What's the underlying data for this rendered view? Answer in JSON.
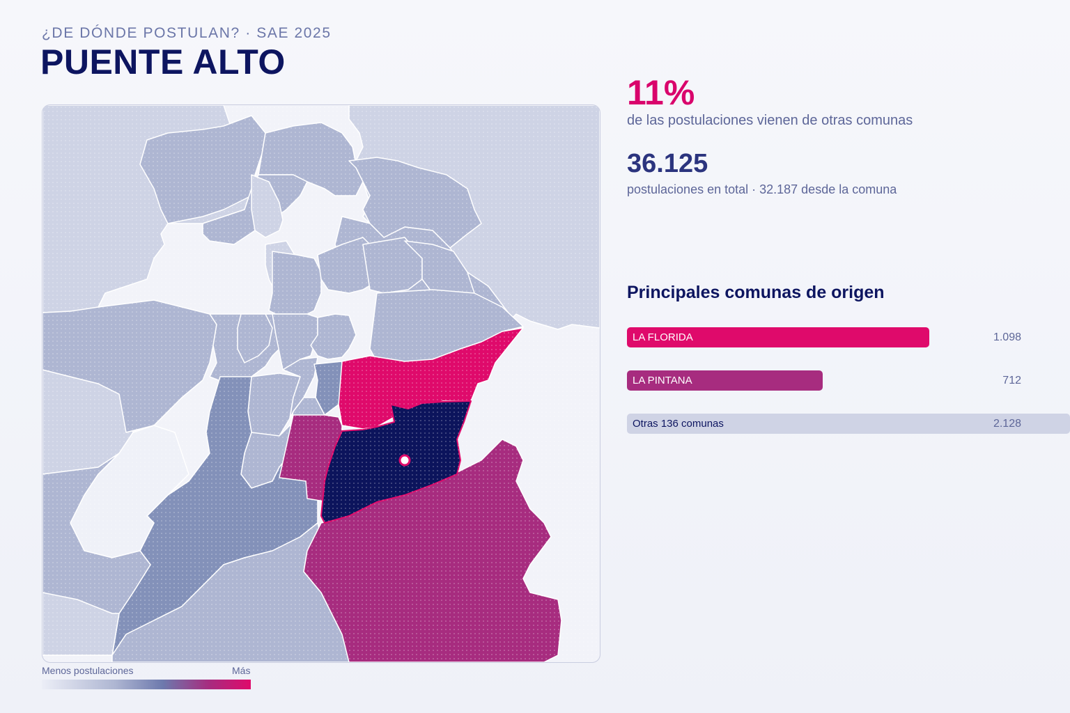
{
  "header": {
    "kicker": "¿DE DÓNDE POSTULAN? · SAE 2025",
    "title": "PUENTE ALTO"
  },
  "stats": {
    "outside_pct": "11%",
    "outside_label": "de las postulaciones vienen de otras comunas",
    "total": "36.125",
    "total_label": "postulaciones en total · 32.187 desde la comuna"
  },
  "origins": {
    "title": "Principales comunas de origen",
    "items": [
      {
        "label": "LA FLORIDA",
        "value": "1.098",
        "share": 0.682,
        "color": "#df0a6b",
        "text_color": "#ffffff"
      },
      {
        "label": "LA PINTANA",
        "value": "712",
        "share": 0.442,
        "color": "#a72c7f",
        "text_color": "#ffffff"
      },
      {
        "label": "Otras 136 comunas",
        "value": "2.128",
        "share": 1.0,
        "color": "#cfd3e5",
        "text_color": "#0d1560"
      }
    ]
  },
  "legend": {
    "low_label": "Menos postulaciones",
    "high_label": "Más"
  },
  "map": {
    "colors": {
      "selected": "#0c145c",
      "highest": "#df0a6b",
      "high": "#a72c7f",
      "mid": "#8391b9",
      "low": "#aeb6d2",
      "lowest": "#ced3e5",
      "none": "#eff1f8",
      "border": "#ffffff"
    }
  }
}
